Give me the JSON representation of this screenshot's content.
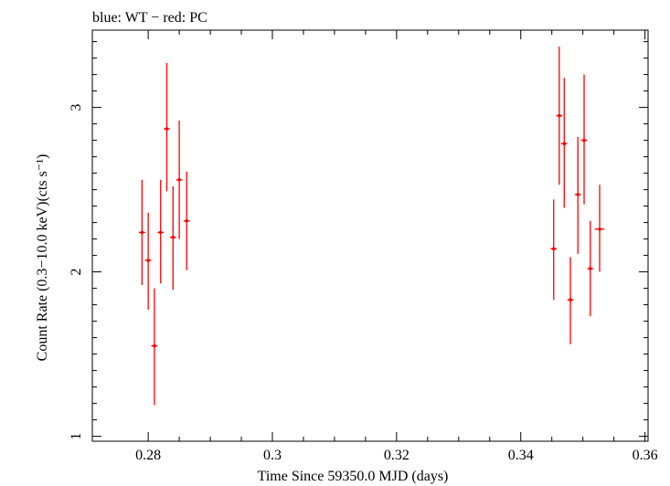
{
  "chart_data": {
    "type": "scatter",
    "title": "blue: WT − red: PC",
    "xlabel": "Time Since 59350.0 MJD (days)",
    "ylabel": "Count Rate (0.3−10.0 keV)(cts s⁻¹)",
    "xlim": [
      0.271,
      0.3605
    ],
    "ylim": [
      0.97,
      3.47
    ],
    "x_ticks": [
      0.28,
      0.3,
      0.32,
      0.34,
      0.36
    ],
    "x_tick_labels": [
      "0.28",
      "0.3",
      "0.32",
      "0.34",
      "0.36"
    ],
    "y_ticks": [
      1,
      2,
      3
    ],
    "y_tick_labels": [
      "1",
      "2",
      "3"
    ],
    "grid": false,
    "series": [
      {
        "color": "#ff0000",
        "points": [
          {
            "x": 0.279,
            "y": 2.24,
            "xerr": 0.0005,
            "ylo": 1.92,
            "yhi": 2.56
          },
          {
            "x": 0.28,
            "y": 2.07,
            "xerr": 0.0005,
            "ylo": 1.77,
            "yhi": 2.36
          },
          {
            "x": 0.281,
            "y": 1.55,
            "xerr": 0.0005,
            "ylo": 1.19,
            "yhi": 1.9
          },
          {
            "x": 0.282,
            "y": 2.24,
            "xerr": 0.0005,
            "ylo": 1.93,
            "yhi": 2.56
          },
          {
            "x": 0.283,
            "y": 2.87,
            "xerr": 0.0005,
            "ylo": 2.49,
            "yhi": 3.27
          },
          {
            "x": 0.284,
            "y": 2.21,
            "xerr": 0.0005,
            "ylo": 1.89,
            "yhi": 2.52
          },
          {
            "x": 0.285,
            "y": 2.56,
            "xerr": 0.0005,
            "ylo": 2.2,
            "yhi": 2.92
          },
          {
            "x": 0.2862,
            "y": 2.31,
            "xerr": 0.0005,
            "ylo": 2.01,
            "yhi": 2.61
          },
          {
            "x": 0.3453,
            "y": 2.14,
            "xerr": 0.0005,
            "ylo": 1.83,
            "yhi": 2.44
          },
          {
            "x": 0.3462,
            "y": 2.95,
            "xerr": 0.0005,
            "ylo": 2.53,
            "yhi": 3.37
          },
          {
            "x": 0.347,
            "y": 2.78,
            "xerr": 0.0005,
            "ylo": 2.39,
            "yhi": 3.18
          },
          {
            "x": 0.348,
            "y": 1.83,
            "xerr": 0.0005,
            "ylo": 1.56,
            "yhi": 2.09
          },
          {
            "x": 0.3492,
            "y": 2.47,
            "xerr": 0.0005,
            "ylo": 2.11,
            "yhi": 2.82
          },
          {
            "x": 0.3502,
            "y": 2.8,
            "xerr": 0.0005,
            "ylo": 2.41,
            "yhi": 3.2
          },
          {
            "x": 0.3512,
            "y": 2.02,
            "xerr": 0.0005,
            "ylo": 1.73,
            "yhi": 2.31
          },
          {
            "x": 0.3527,
            "y": 2.26,
            "xerr": 0.0008,
            "ylo": 2.0,
            "yhi": 2.53
          }
        ]
      }
    ]
  }
}
